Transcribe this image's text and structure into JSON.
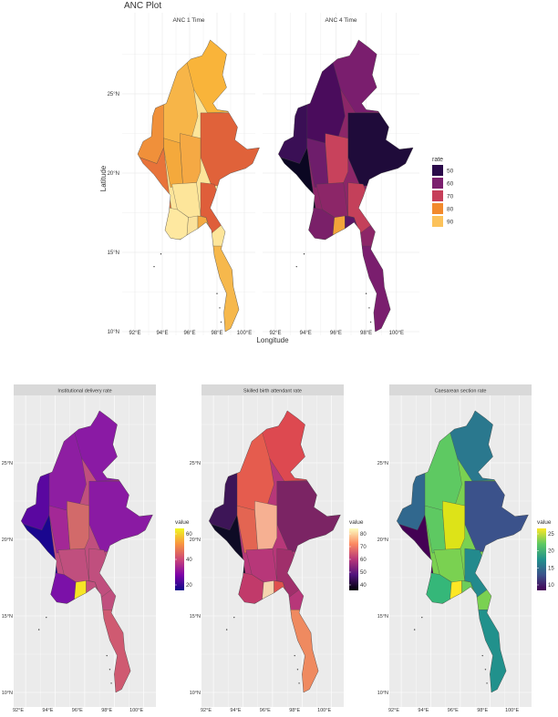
{
  "top": {
    "title": "ANC Plot",
    "facets": [
      "ANC 1 Time",
      "ANC 4 Time"
    ],
    "x_label": "Longitude",
    "y_label": "Latitude",
    "xticks": [
      "92°E",
      "94°E",
      "96°E",
      "98°E",
      "100°E"
    ],
    "yticks": [
      "25°N",
      "20°N",
      "15°N",
      "10°N"
    ],
    "legend": {
      "title": "rate",
      "labels": [
        50,
        60,
        70,
        80,
        90
      ]
    }
  },
  "bottom": {
    "xticks": [
      "92°E",
      "94°E",
      "96°E",
      "98°E",
      "100°E"
    ],
    "yticks": [
      "25°N",
      "20°N",
      "15°N",
      "10°N"
    ],
    "panels": [
      {
        "title": "Institutional delivery rate",
        "legend": {
          "title": "value",
          "labels": [
            60,
            40,
            20
          ]
        }
      },
      {
        "title": "Skilled birth attendant rate",
        "legend": {
          "title": "value",
          "labels": [
            80,
            70,
            60,
            50,
            40
          ]
        }
      },
      {
        "title": "Caesarean section rate",
        "legend": {
          "title": "value",
          "labels": [
            25,
            20,
            15,
            10
          ]
        }
      }
    ]
  }
}
